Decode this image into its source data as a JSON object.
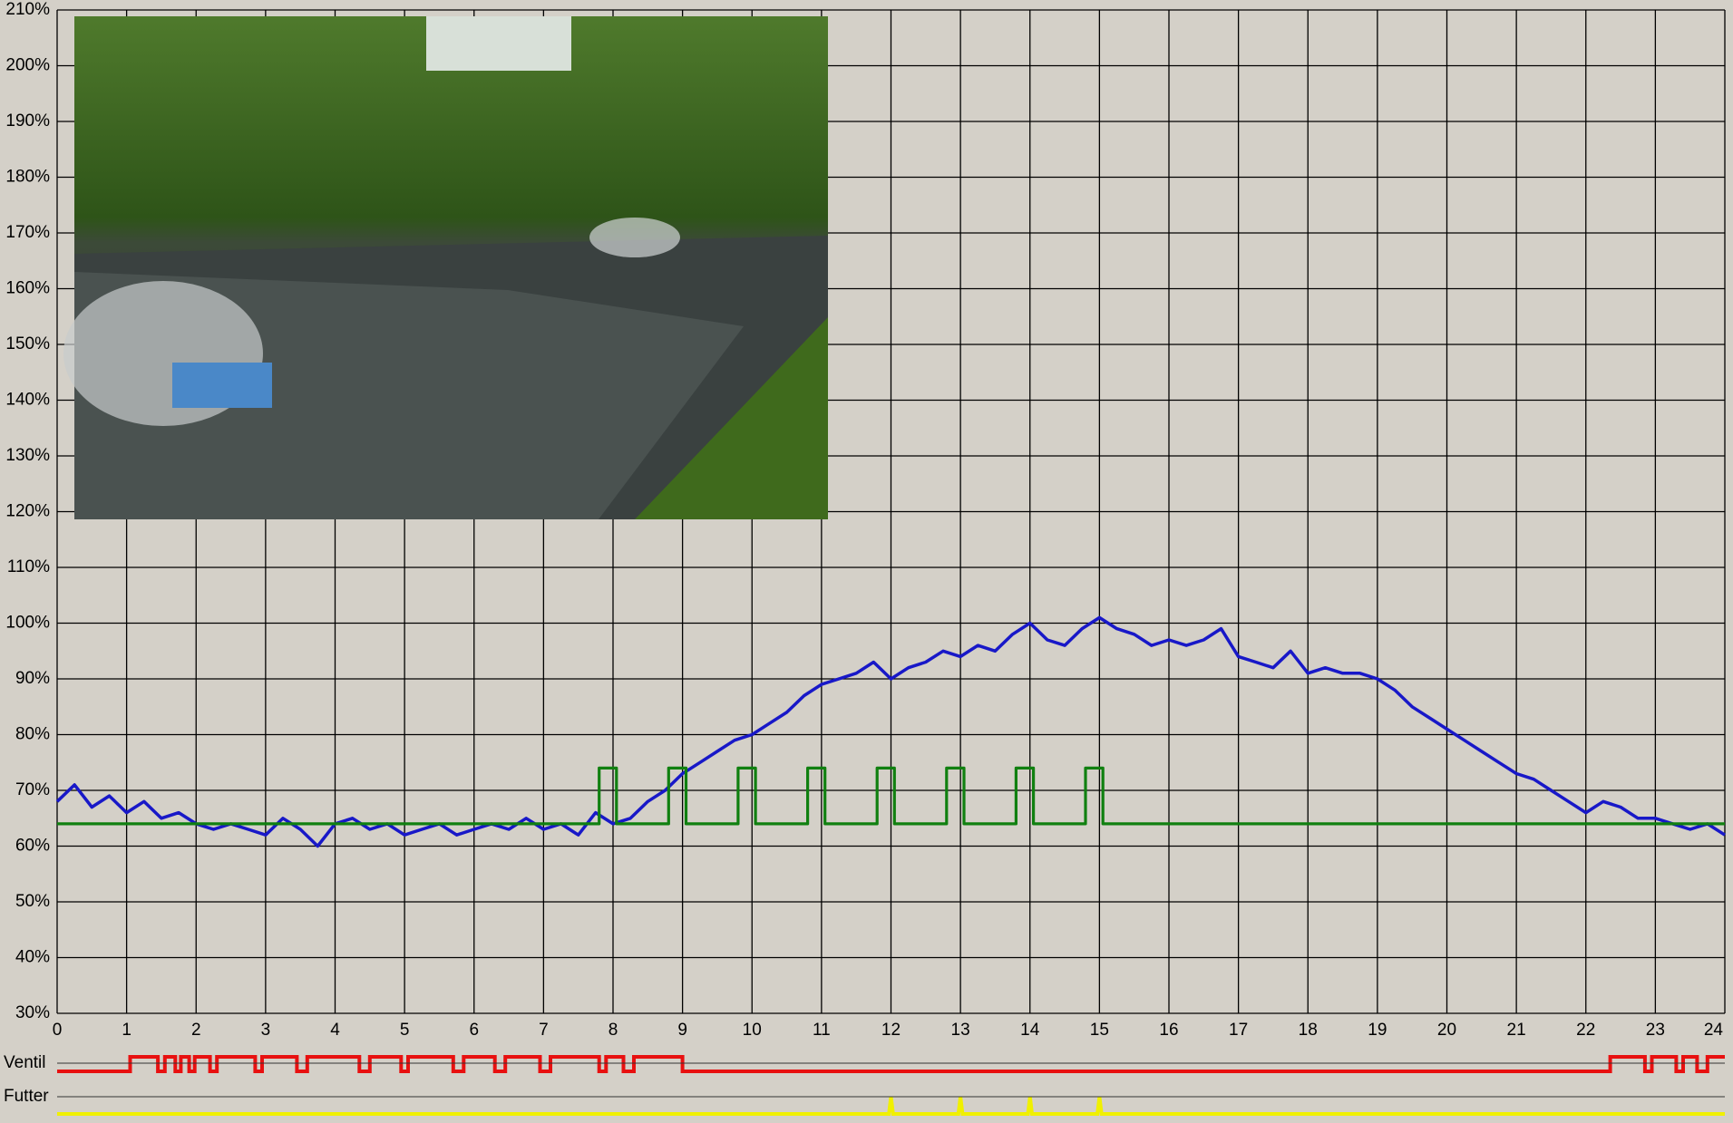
{
  "chart_data": [
    {
      "type": "line",
      "xlim": [
        0,
        24
      ],
      "xticks": [
        0,
        1,
        2,
        3,
        4,
        5,
        6,
        7,
        8,
        9,
        10,
        11,
        12,
        13,
        14,
        15,
        16,
        17,
        18,
        19,
        20,
        21,
        22,
        23,
        24
      ],
      "ylim": [
        30,
        210
      ],
      "yticks": [
        {
          "value": 30,
          "label": "30%"
        },
        {
          "value": 40,
          "label": "40%"
        },
        {
          "value": 50,
          "label": "50%"
        },
        {
          "value": 60,
          "label": "60%"
        },
        {
          "value": 70,
          "label": "70%"
        },
        {
          "value": 80,
          "label": "80%"
        },
        {
          "value": 90,
          "label": "90%"
        },
        {
          "value": 100,
          "label": "100%"
        },
        {
          "value": 110,
          "label": "110%"
        },
        {
          "value": 120,
          "label": "120%"
        },
        {
          "value": 130,
          "label": "130%"
        },
        {
          "value": 140,
          "label": "140%"
        },
        {
          "value": 150,
          "label": "150%"
        },
        {
          "value": 160,
          "label": "160%"
        },
        {
          "value": 170,
          "label": "170%"
        },
        {
          "value": 180,
          "label": "180%"
        },
        {
          "value": 190,
          "label": "190%"
        },
        {
          "value": 200,
          "label": "200%"
        },
        {
          "value": 210,
          "label": "210%"
        }
      ],
      "grid": true,
      "series": [
        {
          "color": "#1818c8",
          "x": [
            0,
            0.25,
            0.5,
            0.75,
            1,
            1.25,
            1.5,
            1.75,
            2,
            2.25,
            2.5,
            2.75,
            3,
            3.25,
            3.5,
            3.75,
            4,
            4.25,
            4.5,
            4.75,
            5,
            5.25,
            5.5,
            5.75,
            6,
            6.25,
            6.5,
            6.75,
            7,
            7.25,
            7.5,
            7.75,
            8,
            8.25,
            8.5,
            8.75,
            9,
            9.25,
            9.5,
            9.75,
            10,
            10.25,
            10.5,
            10.75,
            11,
            11.25,
            11.5,
            11.75,
            12,
            12.25,
            12.5,
            12.75,
            13,
            13.25,
            13.5,
            13.75,
            14,
            14.25,
            14.5,
            14.75,
            15,
            15.25,
            15.5,
            15.75,
            16,
            16.25,
            16.5,
            16.75,
            17,
            17.25,
            17.5,
            17.75,
            18,
            18.25,
            18.5,
            18.75,
            19,
            19.25,
            19.5,
            19.75,
            20,
            20.25,
            20.5,
            20.75,
            21,
            21.25,
            21.5,
            21.75,
            22,
            22.25,
            22.5,
            22.75,
            23,
            23.25,
            23.5,
            23.75,
            24
          ],
          "values": [
            68,
            71,
            67,
            69,
            66,
            68,
            65,
            66,
            64,
            63,
            64,
            63,
            62,
            65,
            63,
            60,
            64,
            65,
            63,
            64,
            62,
            63,
            64,
            62,
            63,
            64,
            63,
            65,
            63,
            64,
            62,
            66,
            64,
            65,
            68,
            70,
            73,
            75,
            77,
            79,
            80,
            82,
            84,
            87,
            89,
            90,
            91,
            93,
            90,
            92,
            93,
            95,
            94,
            96,
            95,
            98,
            100,
            97,
            96,
            99,
            101,
            99,
            98,
            96,
            97,
            96,
            97,
            99,
            94,
            93,
            92,
            95,
            91,
            92,
            91,
            91,
            90,
            88,
            85,
            83,
            81,
            79,
            77,
            75,
            73,
            72,
            70,
            68,
            66,
            68,
            67,
            65,
            65,
            64,
            63,
            64,
            62
          ]
        },
        {
          "color": "#108010",
          "x": [
            0,
            7.8,
            7.8,
            8.05,
            8.05,
            8.8,
            8.8,
            9.05,
            9.05,
            9.8,
            9.8,
            10.05,
            10.05,
            10.8,
            10.8,
            11.05,
            11.05,
            11.8,
            11.8,
            12.05,
            12.05,
            12.8,
            12.8,
            13.05,
            13.05,
            13.8,
            13.8,
            14.05,
            14.05,
            14.8,
            14.8,
            15.05,
            15.05,
            24
          ],
          "values": [
            64,
            64,
            74,
            74,
            64,
            64,
            74,
            74,
            64,
            64,
            74,
            74,
            64,
            64,
            74,
            74,
            64,
            64,
            74,
            74,
            64,
            64,
            74,
            74,
            64,
            64,
            74,
            74,
            64,
            64,
            74,
            74,
            64,
            64
          ]
        }
      ]
    },
    {
      "type": "line",
      "label": "Ventil",
      "color": "#e81010",
      "ylim": [
        0,
        1
      ],
      "x": [
        0,
        1.05,
        1.05,
        1.45,
        1.45,
        1.55,
        1.55,
        1.7,
        1.7,
        1.78,
        1.78,
        1.9,
        1.9,
        1.98,
        1.98,
        2.2,
        2.2,
        2.3,
        2.3,
        2.85,
        2.85,
        2.95,
        2.95,
        3.45,
        3.45,
        3.6,
        3.6,
        4.35,
        4.35,
        4.5,
        4.5,
        4.95,
        4.95,
        5.05,
        5.05,
        5.7,
        5.7,
        5.85,
        5.85,
        6.3,
        6.3,
        6.45,
        6.45,
        6.95,
        6.95,
        7.1,
        7.1,
        7.8,
        7.8,
        7.9,
        7.9,
        8.15,
        8.15,
        8.3,
        8.3,
        9,
        9,
        22.35,
        22.35,
        22.85,
        22.85,
        22.95,
        22.95,
        23.3,
        23.3,
        23.4,
        23.4,
        23.6,
        23.6,
        23.75,
        23.75,
        24
      ],
      "values": [
        0,
        0,
        1,
        1,
        0,
        0,
        1,
        1,
        0,
        0,
        1,
        1,
        0,
        0,
        1,
        1,
        0,
        0,
        1,
        1,
        0,
        0,
        1,
        1,
        0,
        0,
        1,
        1,
        0,
        0,
        1,
        1,
        0,
        0,
        1,
        1,
        0,
        0,
        1,
        1,
        0,
        0,
        1,
        1,
        0,
        0,
        1,
        1,
        0,
        0,
        1,
        1,
        0,
        0,
        1,
        1,
        0,
        0,
        1,
        1,
        0,
        0,
        1,
        1,
        0,
        0,
        1,
        1,
        0,
        0,
        1,
        1
      ]
    },
    {
      "type": "line",
      "label": "Futter",
      "color": "#f0f000",
      "ylim": [
        0,
        1
      ],
      "x": [
        0,
        11.97,
        12,
        12.03,
        12.97,
        13,
        13.03,
        13.97,
        14,
        14.03,
        14.97,
        15,
        15.03,
        24
      ],
      "values": [
        0,
        0,
        1,
        0,
        0,
        1,
        0,
        0,
        1,
        0,
        0,
        1,
        0,
        0
      ]
    }
  ]
}
